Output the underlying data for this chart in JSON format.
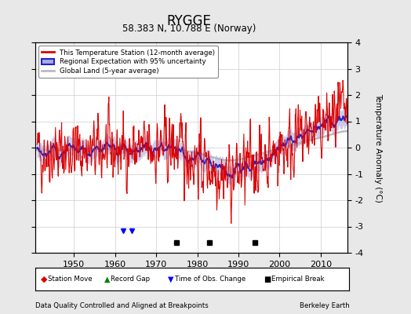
{
  "title": "RYGGE",
  "subtitle": "58.383 N, 10.788 E (Norway)",
  "footer_left": "Data Quality Controlled and Aligned at Breakpoints",
  "footer_right": "Berkeley Earth",
  "ylabel": "Temperature Anomaly (°C)",
  "xlim": [
    1940.5,
    2016.5
  ],
  "ylim": [
    -4,
    4
  ],
  "yticks": [
    -4,
    -3,
    -2,
    -1,
    0,
    1,
    2,
    3,
    4
  ],
  "xticks": [
    1950,
    1960,
    1970,
    1980,
    1990,
    2000,
    2010
  ],
  "start_year": 1941,
  "end_year": 2016,
  "background_color": "#e8e8e8",
  "plot_bg_color": "#ffffff",
  "grid_color": "#cccccc",
  "red_line_color": "#dd0000",
  "blue_line_color": "#2222cc",
  "blue_fill_color": "#aaaadd",
  "gray_line_color": "#bbbbbb",
  "legend_items": [
    "This Temperature Station (12-month average)",
    "Regional Expectation with 95% uncertainty",
    "Global Land (5-year average)"
  ],
  "empirical_breaks": [
    1975,
    1983,
    1994
  ],
  "time_obs_changes": [
    1962,
    1964
  ],
  "station_moves": [],
  "record_gaps": []
}
